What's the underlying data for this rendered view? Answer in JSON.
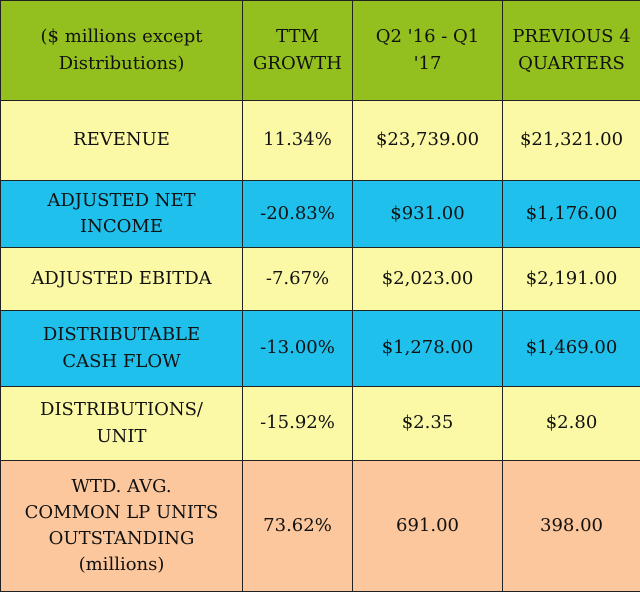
{
  "colors": {
    "header_bg": "#93c01f",
    "yellow_row": "#fcf9a6",
    "blue_row": "#1fc0ec",
    "orange_row": "#fcc79c",
    "border": "#222222"
  },
  "chart_data": {
    "type": "table",
    "columns": [
      "($ millions except\nDistributions)",
      "TTM\nGROWTH",
      "Q2 '16 - Q1\n'17",
      "PREVIOUS 4\nQUARTERS"
    ],
    "rows": [
      {
        "style": "yellow",
        "cells": [
          "REVENUE",
          "11.34%",
          "$23,739.00",
          "$21,321.00"
        ]
      },
      {
        "style": "blue",
        "cells": [
          "ADJUSTED  NET\nINCOME",
          "-20.83%",
          "$931.00",
          "$1,176.00"
        ]
      },
      {
        "style": "yellow",
        "cells": [
          "ADJUSTED EBITDA",
          "-7.67%",
          "$2,023.00",
          "$2,191.00"
        ]
      },
      {
        "style": "blue",
        "cells": [
          "DISTRIBUTABLE\nCASH FLOW",
          "-13.00%",
          "$1,278.00",
          "$1,469.00"
        ]
      },
      {
        "style": "yellow",
        "cells": [
          "DISTRIBUTIONS/\nUNIT",
          "-15.92%",
          "$2.35",
          "$2.80"
        ]
      },
      {
        "style": "orange",
        "cells": [
          "WTD. AVG.\nCOMMON  LP UNITS\nOUTSTANDING\n(millions)",
          "73.62%",
          "691.00",
          "398.00"
        ]
      }
    ]
  }
}
